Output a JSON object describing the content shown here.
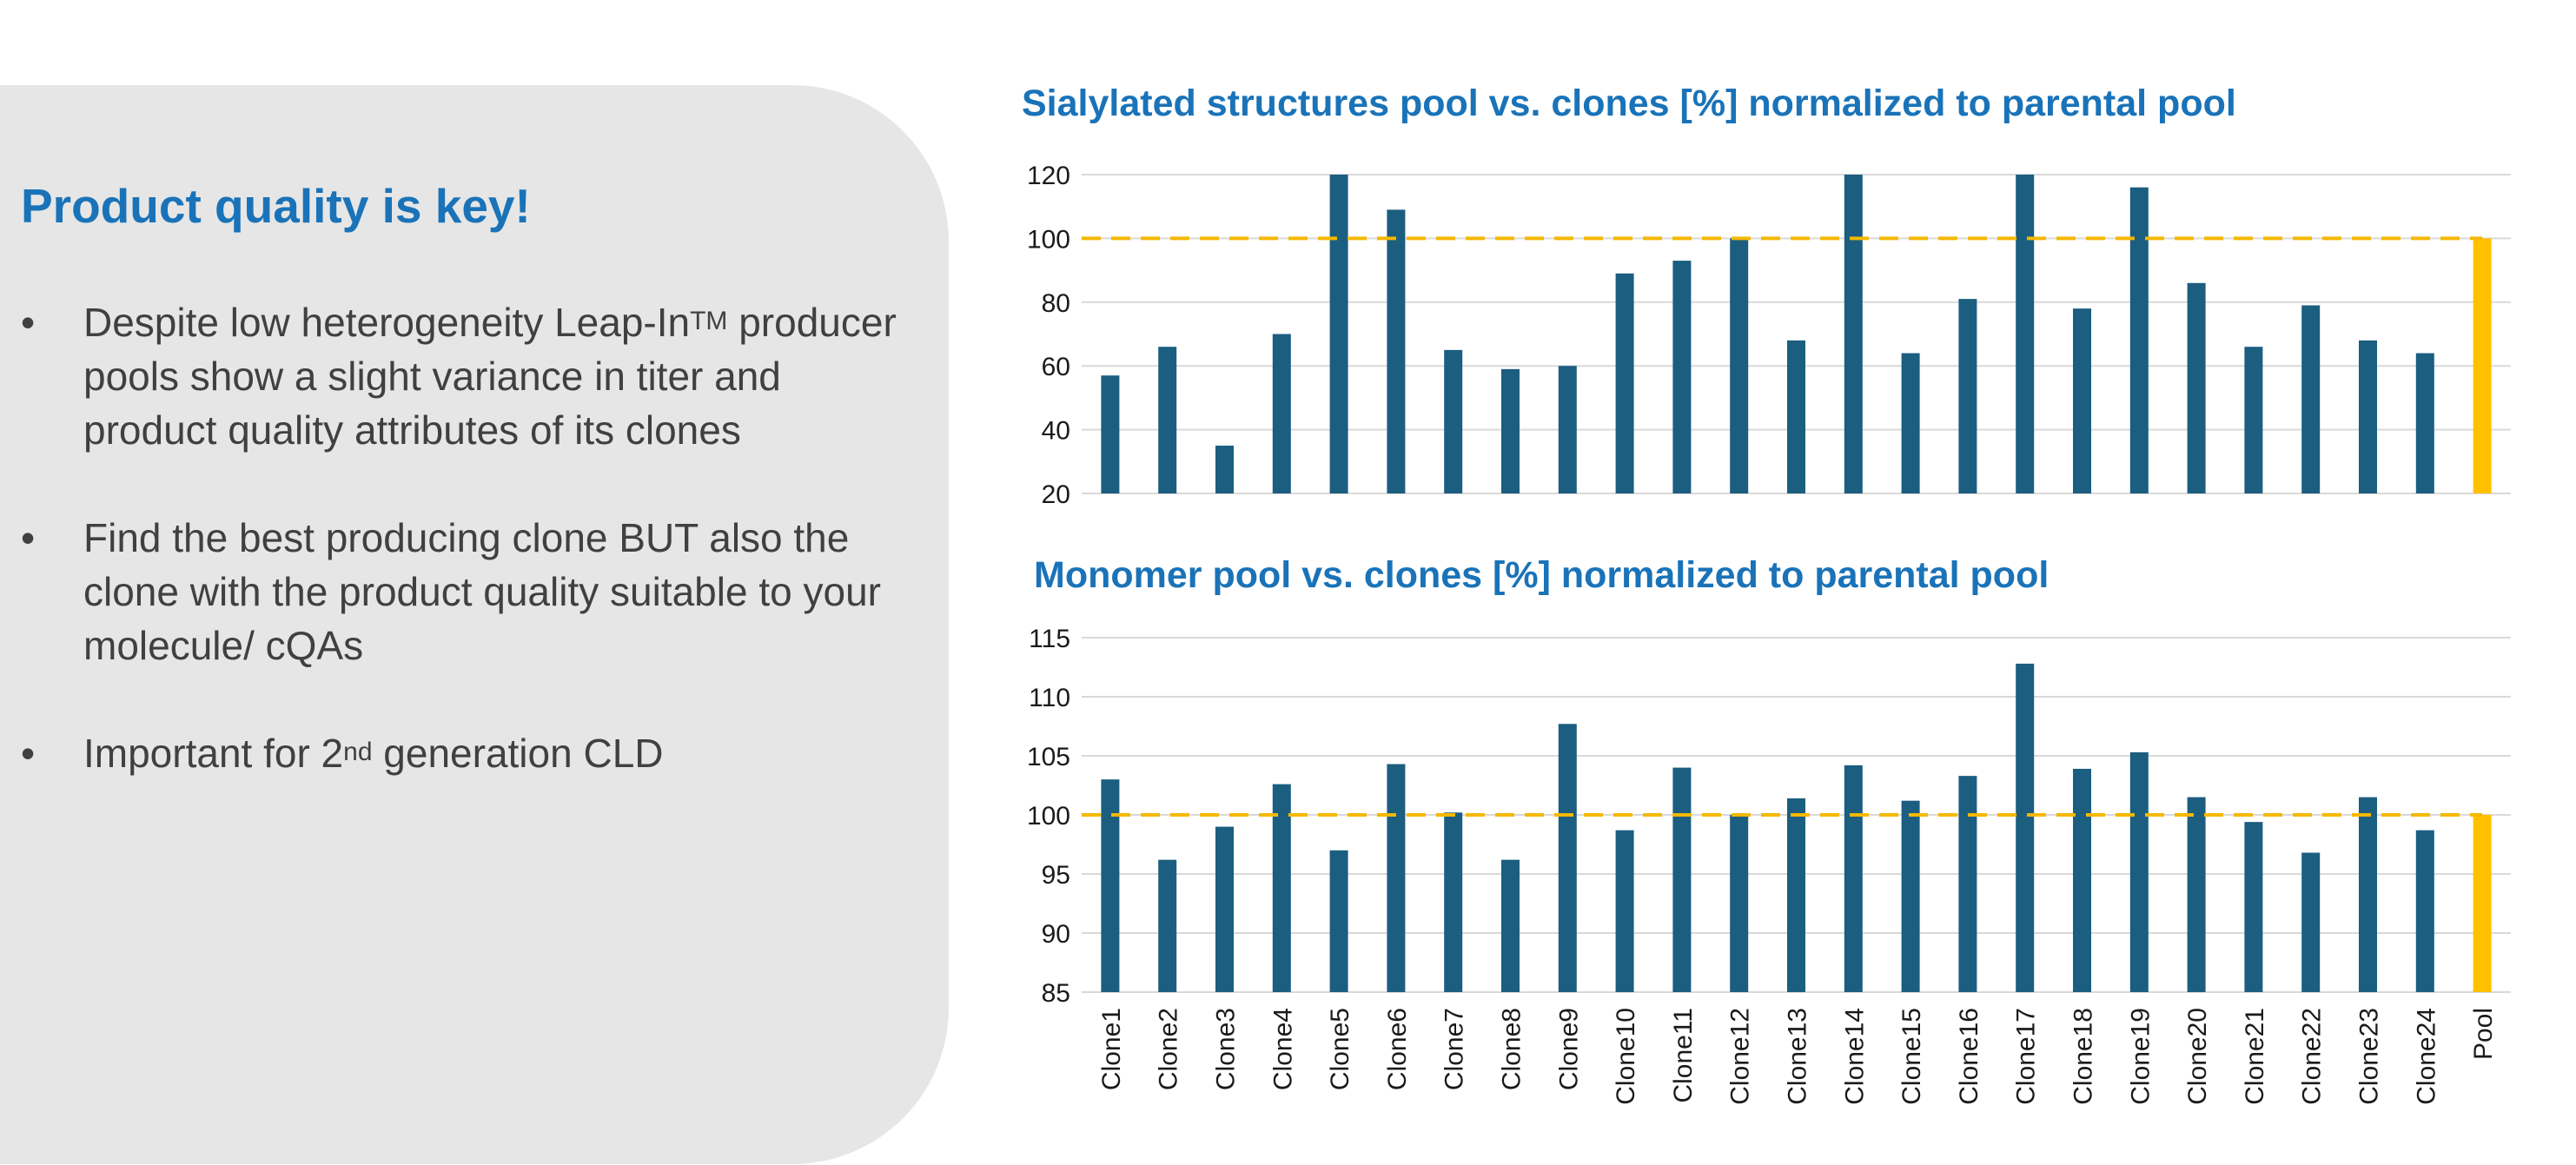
{
  "left_panel": {
    "headline": "Product quality is key!",
    "bullets": [
      {
        "marker": "•",
        "text": "Despite low heterogeneity Leap-In",
        "sup": "TM",
        "text_after": " producer pools show a slight variance in titer and product quality attributes of its clones"
      },
      {
        "marker": "•",
        "text": "Find the best producing clone BUT also the clone with the product quality suitable to your molecule/ cQAs",
        "sup": "",
        "text_after": ""
      },
      {
        "marker": "•",
        "text": "Important for 2",
        "sup": "nd",
        "text_after": " generation CLD"
      }
    ]
  },
  "colors": {
    "bar": "#1b5e80",
    "pool_bar": "#ffc000",
    "reference_line": "#f5b800",
    "grid": "#d9d9d9",
    "title": "#1a73b8"
  },
  "chart_data": [
    {
      "type": "bar",
      "title": "Sialylated structures pool vs. clones [%] normalized to parental pool",
      "categories": [
        "Clone1",
        "Clone2",
        "Clone3",
        "Clone4",
        "Clone5",
        "Clone6",
        "Clone7",
        "Clone8",
        "Clone9",
        "Clone10",
        "Clone11",
        "Clone12",
        "Clone13",
        "Clone14",
        "Clone15",
        "Clone16",
        "Clone17",
        "Clone18",
        "Clone19",
        "Clone20",
        "Clone21",
        "Clone22",
        "Clone23",
        "Clone24",
        "Pool"
      ],
      "values": [
        57,
        66,
        35,
        70,
        120,
        109,
        65,
        59,
        60,
        89,
        93,
        100,
        68,
        120,
        64,
        81,
        120,
        78,
        116,
        86,
        66,
        79,
        68,
        64,
        100
      ],
      "ylim": [
        20,
        120
      ],
      "yticks": [
        "20",
        "40",
        "60",
        "80",
        "100",
        "120"
      ],
      "reference_line": 100,
      "highlight_category": "Pool",
      "grid": true,
      "xlabel": "",
      "ylabel": ""
    },
    {
      "type": "bar",
      "title": "Monomer pool vs. clones [%] normalized to parental pool",
      "categories": [
        "Clone1",
        "Clone2",
        "Clone3",
        "Clone4",
        "Clone5",
        "Clone6",
        "Clone7",
        "Clone8",
        "Clone9",
        "Clone10",
        "Clone11",
        "Clone12",
        "Clone13",
        "Clone14",
        "Clone15",
        "Clone16",
        "Clone17",
        "Clone18",
        "Clone19",
        "Clone20",
        "Clone21",
        "Clone22",
        "Clone23",
        "Clone24",
        "Pool"
      ],
      "values": [
        103.0,
        96.2,
        99.0,
        102.6,
        97.0,
        104.3,
        100.2,
        96.2,
        107.7,
        98.7,
        104.0,
        100.0,
        101.4,
        104.2,
        101.2,
        103.3,
        112.8,
        103.9,
        105.3,
        101.5,
        99.4,
        96.8,
        101.5,
        98.7,
        100.0
      ],
      "ylim": [
        85,
        115
      ],
      "yticks": [
        "85",
        "90",
        "95",
        "100",
        "105",
        "110",
        "115"
      ],
      "reference_line": 100,
      "highlight_category": "Pool",
      "grid": true,
      "xlabel": "",
      "ylabel": ""
    }
  ]
}
